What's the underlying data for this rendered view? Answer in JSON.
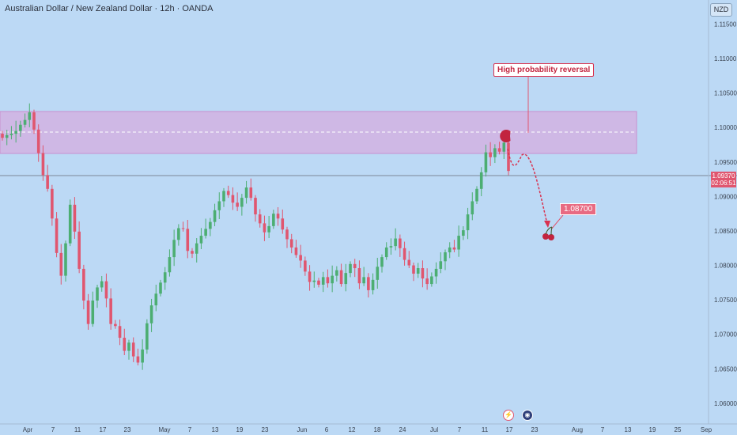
{
  "header": {
    "title": "Australian Dollar / New Zealand Dollar · 12h · OANDA",
    "currency": "NZD"
  },
  "current_price": {
    "value": "1.09370",
    "countdown": "02:06:51"
  },
  "annotations": {
    "callout": "High probability reversal",
    "target": "1.08700"
  },
  "events": [
    {
      "icon": "flash-icon",
      "glyph": "⚡"
    },
    {
      "icon": "flag-icon",
      "glyph": "◉"
    }
  ],
  "colors": {
    "background": "#bcd9f5",
    "up_candle": "#4cae72",
    "down_candle": "#e0566f",
    "zone": "#d9a6dc",
    "accent": "#c2243f"
  },
  "chart_data": {
    "type": "candlestick",
    "title": "Australian Dollar / New Zealand Dollar · 12h · OANDA",
    "ylim": [
      1.057,
      1.1185
    ],
    "y_ticks": [
      "1.11500",
      "1.11000",
      "1.10500",
      "1.10000",
      "1.09500",
      "1.09000",
      "1.08500",
      "1.08000",
      "1.07500",
      "1.07000",
      "1.06500",
      "1.06000"
    ],
    "x_ticks": [
      "Apr",
      "7",
      "11",
      "17",
      "23",
      "May",
      "7",
      "13",
      "19",
      "23",
      "Jun",
      "6",
      "12",
      "18",
      "24",
      "Jul",
      "7",
      "11",
      "17",
      "23",
      "Aug",
      "7",
      "13",
      "19",
      "25",
      "Sep"
    ],
    "resistance_zone": {
      "low": 1.0967,
      "high": 1.1032,
      "mid": 1.1001
    },
    "current_price": 1.0937,
    "target_price": 1.087,
    "close_path": [
      1.0985,
      1.0989,
      1.0991,
      1.0995,
      1.1004,
      1.1011,
      1.1022,
      1.0997,
      1.0963,
      1.0931,
      1.0911,
      1.0868,
      1.0818,
      1.0785,
      1.0832,
      1.0888,
      1.0849,
      1.0795,
      1.0749,
      1.0715,
      1.0749,
      1.0768,
      1.0777,
      1.0752,
      1.0715,
      1.0712,
      1.0695,
      1.0676,
      1.0688,
      1.0668,
      1.0659,
      1.0678,
      1.0716,
      1.0742,
      1.0759,
      1.0775,
      1.079,
      1.0812,
      1.0837,
      1.0854,
      1.0853,
      1.0821,
      1.0817,
      1.0832,
      1.0843,
      1.0853,
      1.0863,
      1.088,
      1.0893,
      1.0908,
      1.0902,
      1.0891,
      1.0885,
      1.0898,
      1.0913,
      1.0898,
      1.0874,
      1.0861,
      1.0848,
      1.0857,
      1.0875,
      1.0868,
      1.0852,
      1.0838,
      1.0826,
      1.0815,
      1.0807,
      1.0791,
      1.0776,
      1.0778,
      1.0772,
      1.0783,
      1.0774,
      1.0785,
      1.0793,
      1.0773,
      1.0789,
      1.0802,
      1.0796,
      1.0774,
      1.0783,
      1.0764,
      1.0779,
      1.0798,
      1.0812,
      1.0826,
      1.0828,
      1.0839,
      1.0825,
      1.0808,
      1.08,
      1.0788,
      1.0796,
      1.0781,
      1.0773,
      1.0784,
      1.0795,
      1.0806,
      1.0819,
      1.0826,
      1.0823,
      1.0843,
      1.0851,
      1.0874,
      1.0893,
      1.0911,
      1.0935,
      1.0964,
      1.0957,
      1.097,
      1.0965,
      1.0978,
      1.0937
    ]
  }
}
